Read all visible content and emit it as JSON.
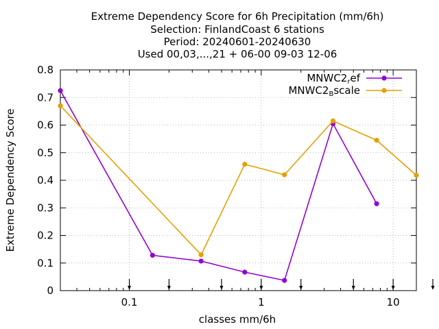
{
  "chart_data": {
    "type": "line",
    "title_lines": [
      "Extreme Dependency Score  for 6h Precipitation (mm/6h)",
      "Selection: FinlandCoast      6 stations",
      "Period: 20240601-20240630",
      "Used 00,03,...,21 + 06-00 09-03 12-06"
    ],
    "xlabel": "classes mm/6h",
    "ylabel": "Extreme Dependency Score",
    "x_scale": "log",
    "xlim": [
      0.03,
      15
    ],
    "ylim": [
      0,
      0.8
    ],
    "x_ticks": [
      {
        "value": 0.1,
        "label": "0.1"
      },
      {
        "value": 1,
        "label": "1"
      },
      {
        "value": 10,
        "label": "10"
      }
    ],
    "y_ticks": [
      {
        "value": 0,
        "label": "0"
      },
      {
        "value": 0.1,
        "label": "0.1"
      },
      {
        "value": 0.2,
        "label": "0.2"
      },
      {
        "value": 0.3,
        "label": "0.3"
      },
      {
        "value": 0.4,
        "label": "0.4"
      },
      {
        "value": 0.5,
        "label": "0.5"
      },
      {
        "value": 0.6,
        "label": "0.6"
      },
      {
        "value": 0.7,
        "label": "0.7"
      },
      {
        "value": 0.8,
        "label": "0.8"
      }
    ],
    "class_arrows_x": [
      0.1,
      0.2,
      0.5,
      1,
      2,
      5,
      10,
      20
    ],
    "grid": true,
    "legend_position": "top-right",
    "series": [
      {
        "name_main": "MNWC2",
        "name_sub": "r",
        "name_rest": "ef",
        "color": "#9400D3",
        "x": [
          0.03,
          0.15,
          0.35,
          0.75,
          1.5,
          3.5,
          7.5
        ],
        "y": [
          0.725,
          0.128,
          0.107,
          0.067,
          0.037,
          0.605,
          0.315
        ]
      },
      {
        "name_main": "MNWC2",
        "name_sub": "B",
        "name_rest": "scale",
        "color": "#E69F00",
        "x": [
          0.03,
          0.35,
          0.75,
          1.5,
          3.5,
          7.5,
          15
        ],
        "y": [
          0.67,
          0.13,
          0.458,
          0.42,
          0.615,
          0.545,
          0.418
        ]
      }
    ]
  }
}
